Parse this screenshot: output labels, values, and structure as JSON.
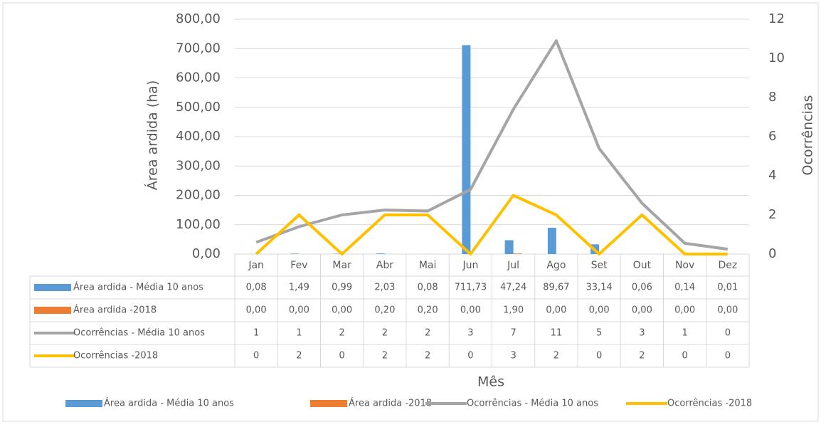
{
  "chart_data": {
    "type": "bar",
    "categories": [
      "Jan",
      "Fev",
      "Mar",
      "Abr",
      "Mai",
      "Jun",
      "Jul",
      "Ago",
      "Set",
      "Out",
      "Nov",
      "Dez"
    ],
    "series": [
      {
        "name": "Área ardida - Média 10 anos",
        "type": "bar",
        "color": "#5b9bd5",
        "values": [
          0.08,
          1.49,
          0.99,
          2.03,
          0.08,
          711.73,
          47.24,
          89.67,
          33.14,
          0.06,
          0.14,
          0.01
        ],
        "value_labels": [
          "0,08",
          "1,49",
          "0,99",
          "2,03",
          "0,08",
          "711,73",
          "47,24",
          "89,67",
          "33,14",
          "0,06",
          "0,14",
          "0,01"
        ]
      },
      {
        "name": "Área ardida -2018",
        "type": "bar",
        "color": "#ed7d31",
        "values": [
          0,
          0,
          0,
          0.2,
          0.2,
          0,
          1.9,
          0,
          0,
          0,
          0,
          0
        ],
        "value_labels": [
          "0,00",
          "0,00",
          "0,00",
          "0,20",
          "0,20",
          "0,00",
          "1,90",
          "0,00",
          "0,00",
          "0,00",
          "0,00",
          "0,00"
        ]
      },
      {
        "name": "Ocorrências - Média 10 anos",
        "type": "line",
        "axis": "y2",
        "color": "#a5a5a5",
        "values": [
          0.6,
          1.4,
          2.0,
          2.25,
          2.2,
          3.3,
          7.4,
          10.9,
          5.4,
          2.6,
          0.55,
          0.25
        ],
        "value_labels": [
          "1",
          "1",
          "2",
          "2",
          "2",
          "3",
          "7",
          "11",
          "5",
          "3",
          "1",
          "0"
        ]
      },
      {
        "name": "Ocorrências -2018",
        "type": "line",
        "axis": "y2",
        "color": "#ffc000",
        "values": [
          0,
          2,
          0,
          2,
          2,
          0,
          3,
          2,
          0,
          2,
          0,
          0
        ]
      }
    ],
    "y_label": "Área ardida (ha)",
    "y2_label": "Ocorrências",
    "x_label": "Mês",
    "ylim": [
      0,
      800
    ],
    "yticks": [
      {
        "value": 0,
        "label": "0,00"
      },
      {
        "value": 100,
        "label": "100,00"
      },
      {
        "value": 200,
        "label": "200,00"
      },
      {
        "value": 300,
        "label": "300,00"
      },
      {
        "value": 400,
        "label": "400,00"
      },
      {
        "value": 500,
        "label": "500,00"
      },
      {
        "value": 600,
        "label": "600,00"
      },
      {
        "value": 700,
        "label": "700,00"
      },
      {
        "value": 800,
        "label": "800,00"
      }
    ],
    "y2lim": [
      0,
      12
    ],
    "y2ticks": [
      0,
      2,
      4,
      6,
      8,
      10,
      12
    ],
    "grid": true,
    "legend": "bottom"
  }
}
